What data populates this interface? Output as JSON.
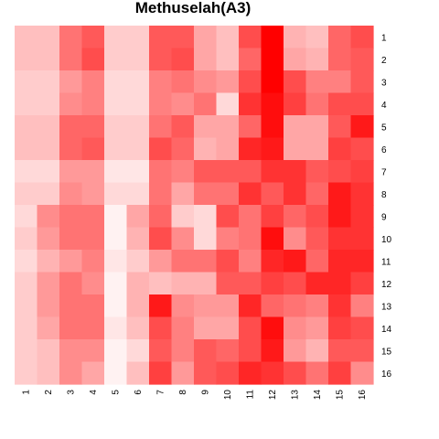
{
  "chart_data": {
    "type": "heatmap",
    "title": "Methuselah(A3)",
    "xlabel": "",
    "ylabel": "",
    "x_ticks": [
      "1",
      "2",
      "3",
      "4",
      "5",
      "6",
      "7",
      "8",
      "9",
      "10",
      "11",
      "12",
      "13",
      "14",
      "15",
      "16"
    ],
    "y_ticks": [
      "1",
      "2",
      "3",
      "4",
      "5",
      "6",
      "7",
      "8",
      "9",
      "10",
      "11",
      "12",
      "13",
      "14",
      "15",
      "16"
    ],
    "color_low": "#ffffff",
    "color_high": "#ff0000",
    "value_range": [
      0,
      1
    ],
    "values": [
      [
        0.25,
        0.25,
        0.55,
        0.65,
        0.2,
        0.2,
        0.65,
        0.65,
        0.35,
        0.25,
        0.7,
        1.0,
        0.3,
        0.25,
        0.6,
        0.7
      ],
      [
        0.25,
        0.25,
        0.55,
        0.7,
        0.2,
        0.2,
        0.65,
        0.7,
        0.35,
        0.25,
        0.6,
        1.0,
        0.35,
        0.3,
        0.6,
        0.65
      ],
      [
        0.2,
        0.2,
        0.4,
        0.5,
        0.15,
        0.15,
        0.5,
        0.55,
        0.45,
        0.4,
        0.7,
        1.0,
        0.7,
        0.5,
        0.5,
        0.65
      ],
      [
        0.2,
        0.2,
        0.45,
        0.5,
        0.15,
        0.15,
        0.5,
        0.45,
        0.55,
        0.15,
        0.8,
        0.95,
        0.75,
        0.55,
        0.7,
        0.7
      ],
      [
        0.25,
        0.25,
        0.6,
        0.6,
        0.2,
        0.2,
        0.55,
        0.65,
        0.35,
        0.35,
        0.6,
        0.95,
        0.35,
        0.35,
        0.65,
        0.9
      ],
      [
        0.25,
        0.25,
        0.6,
        0.65,
        0.2,
        0.2,
        0.7,
        0.6,
        0.3,
        0.35,
        0.85,
        0.9,
        0.35,
        0.35,
        0.75,
        0.7
      ],
      [
        0.15,
        0.15,
        0.4,
        0.4,
        0.1,
        0.1,
        0.55,
        0.5,
        0.65,
        0.65,
        0.65,
        0.8,
        0.8,
        0.65,
        0.7,
        0.75
      ],
      [
        0.2,
        0.2,
        0.45,
        0.4,
        0.15,
        0.15,
        0.55,
        0.35,
        0.55,
        0.55,
        0.8,
        0.65,
        0.8,
        0.6,
        0.9,
        0.8
      ],
      [
        0.15,
        0.45,
        0.55,
        0.55,
        0.05,
        0.35,
        0.6,
        0.2,
        0.15,
        0.7,
        0.55,
        0.75,
        0.6,
        0.7,
        0.9,
        0.8
      ],
      [
        0.2,
        0.4,
        0.55,
        0.55,
        0.05,
        0.3,
        0.7,
        0.45,
        0.15,
        0.5,
        0.55,
        0.95,
        0.45,
        0.65,
        0.8,
        0.8
      ],
      [
        0.15,
        0.3,
        0.4,
        0.5,
        0.1,
        0.2,
        0.4,
        0.55,
        0.55,
        0.7,
        0.5,
        0.85,
        0.9,
        0.6,
        0.85,
        0.85
      ],
      [
        0.2,
        0.4,
        0.55,
        0.45,
        0.05,
        0.3,
        0.25,
        0.3,
        0.3,
        0.65,
        0.65,
        0.75,
        0.7,
        0.85,
        0.85,
        0.75
      ],
      [
        0.2,
        0.4,
        0.55,
        0.55,
        0.05,
        0.3,
        0.9,
        0.45,
        0.4,
        0.4,
        0.85,
        0.6,
        0.55,
        0.5,
        0.8,
        0.5
      ],
      [
        0.2,
        0.35,
        0.55,
        0.55,
        0.1,
        0.25,
        0.7,
        0.5,
        0.35,
        0.35,
        0.7,
        0.95,
        0.45,
        0.4,
        0.75,
        0.7
      ],
      [
        0.2,
        0.25,
        0.45,
        0.45,
        0.05,
        0.15,
        0.65,
        0.5,
        0.65,
        0.6,
        0.7,
        0.9,
        0.4,
        0.3,
        0.65,
        0.65
      ],
      [
        0.2,
        0.25,
        0.45,
        0.35,
        0.05,
        0.25,
        0.75,
        0.4,
        0.65,
        0.7,
        0.85,
        0.8,
        0.7,
        0.55,
        0.75,
        0.45
      ]
    ]
  }
}
